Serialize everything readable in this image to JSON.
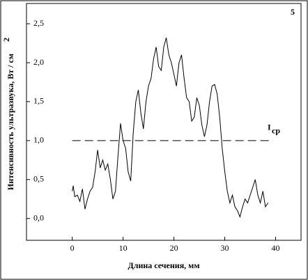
{
  "chart_data": {
    "type": "line",
    "panel_label": "5",
    "x_label": "Длина сечения, мм",
    "y_label": "Интенсивность ультразвука, Вт / см",
    "y_label_superscript": "2",
    "reference_line": {
      "value": 1.0,
      "x": [
        0,
        39.5
      ],
      "label": "I",
      "label_subscript": "ср"
    },
    "xlim": [
      -9,
      45
    ],
    "ylim": [
      -0.28,
      2.76
    ],
    "xticks": [
      0,
      10,
      20,
      30,
      40
    ],
    "yticks": [
      {
        "value": 0,
        "label": "0,0"
      },
      {
        "value": 0.5,
        "label": "0,5"
      },
      {
        "value": 1,
        "label": "1,0"
      },
      {
        "value": 1.5,
        "label": "1,5"
      },
      {
        "value": 2,
        "label": "2,0"
      },
      {
        "value": 2.5,
        "label": "2,5"
      }
    ],
    "x": [
      0,
      0.2,
      0.5,
      1,
      1.5,
      2,
      2.5,
      3,
      3.5,
      4,
      4.5,
      5,
      5.5,
      6,
      6.5,
      7,
      7.5,
      8,
      8.5,
      9,
      9.5,
      10,
      10.5,
      11,
      11.5,
      12,
      12.5,
      13,
      13.5,
      14,
      14.5,
      15,
      15.5,
      16,
      16.5,
      17,
      17.5,
      18,
      18.5,
      19,
      19.5,
      20,
      20.5,
      21,
      21.5,
      22,
      22.5,
      23,
      23.5,
      24,
      24.5,
      25,
      25.5,
      26,
      26.5,
      27,
      27.5,
      28,
      28.5,
      29,
      29.5,
      30,
      30.5,
      31,
      31.5,
      32,
      32.5,
      33,
      33.5,
      34,
      34.5,
      35,
      35.5,
      36,
      36.5,
      37,
      37.5,
      38,
      38.5
    ],
    "series": [
      {
        "color": "#000000",
        "values": [
          0.35,
          0.42,
          0.28,
          0.3,
          0.22,
          0.38,
          0.12,
          0.25,
          0.35,
          0.4,
          0.6,
          0.88,
          0.65,
          0.75,
          0.62,
          0.7,
          0.5,
          0.25,
          0.35,
          0.8,
          1.22,
          1.0,
          0.9,
          0.6,
          0.48,
          1.1,
          1.5,
          1.65,
          1.35,
          1.15,
          1.5,
          1.7,
          1.8,
          2.05,
          2.2,
          1.95,
          1.9,
          2.2,
          2.32,
          2.1,
          2.0,
          1.85,
          1.7,
          2.0,
          2.1,
          1.8,
          1.55,
          1.5,
          1.25,
          1.3,
          1.55,
          1.45,
          1.2,
          1.05,
          1.2,
          1.5,
          1.7,
          1.72,
          1.6,
          1.3,
          0.9,
          0.6,
          0.35,
          0.2,
          0.3,
          0.15,
          0.1,
          0.02,
          0.15,
          0.25,
          0.2,
          0.3,
          0.4,
          0.5,
          0.3,
          0.2,
          0.35,
          0.15,
          0.2
        ]
      }
    ]
  }
}
